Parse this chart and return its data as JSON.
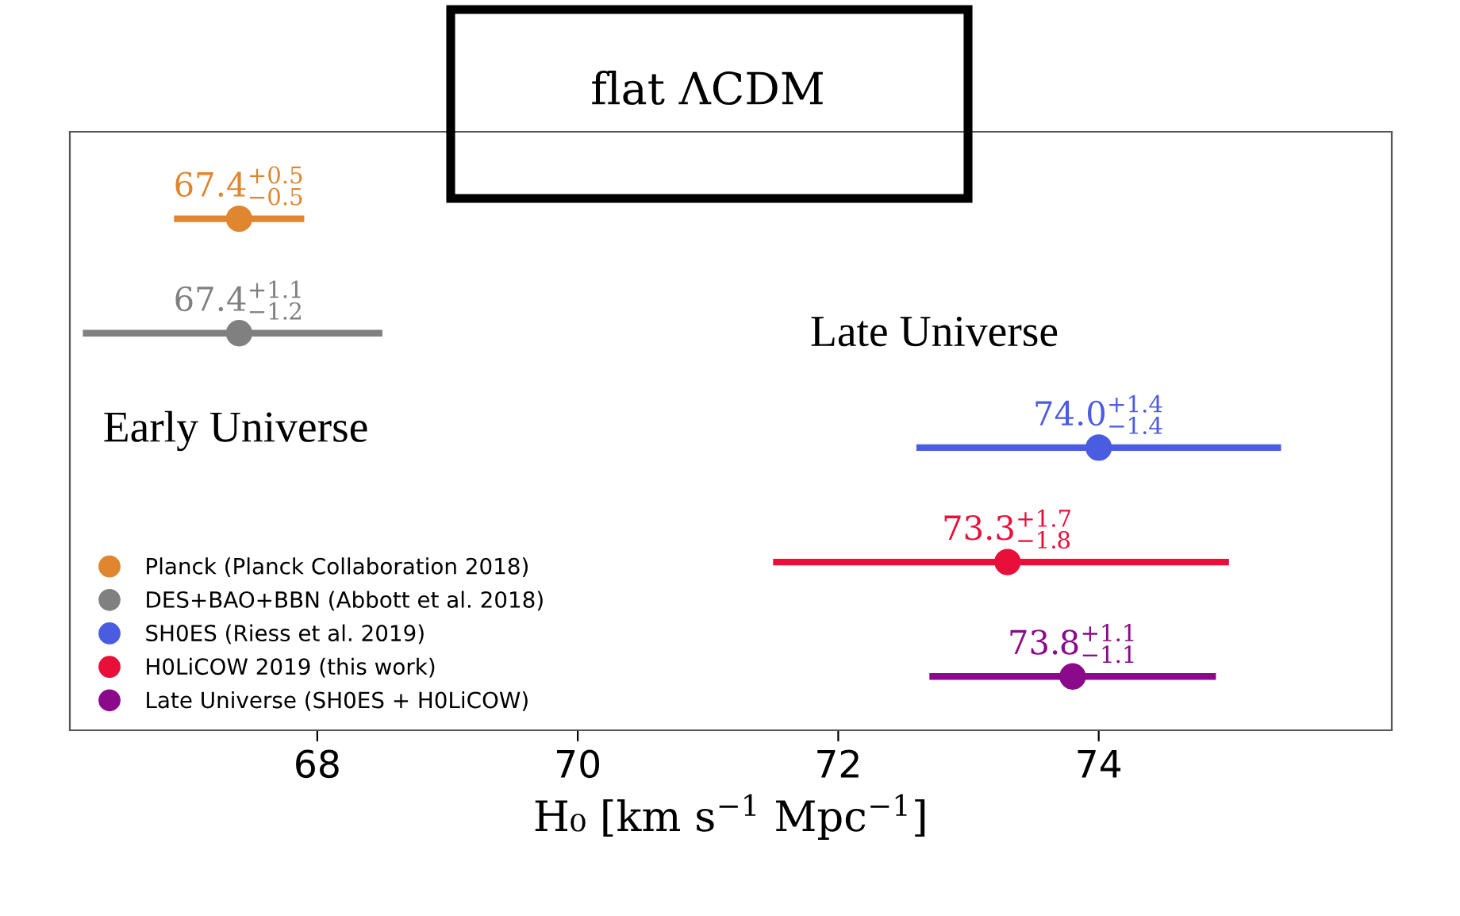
{
  "chart_data": {
    "type": "scatter",
    "orientation": "horizontal",
    "title": "flat ΛCDM",
    "xlabel": "H₀ [km s$^{−1}$ Mpc$^{−1}$]",
    "categories": [
      null,
      null,
      null,
      null,
      null
    ],
    "series": [
      {
        "name": "Planck (Planck Collaboration 2018)",
        "color": "#e0862e",
        "values": [
          67.4,
          null,
          null,
          null,
          null
        ],
        "errors": [
          [
            66.9,
            67.9
          ],
          null,
          null,
          null,
          null
        ],
        "value_labels": [
          "67.4$^{+0.5}$$_{−0.5}$",
          null,
          null,
          null,
          null
        ]
      },
      {
        "name": "DES+BAO+BBN (Abbott et al. 2018)",
        "color": "#808080",
        "values": [
          null,
          67.4,
          null,
          null,
          null
        ],
        "errors": [
          null,
          [
            66.2,
            68.5
          ],
          null,
          null,
          null
        ],
        "value_labels": [
          null,
          "67.4$^{+1.1}$$_{−1.2}$",
          null,
          null,
          null
        ]
      },
      {
        "name": "SH0ES (Riess et al. 2019)",
        "color": "#4a5ce0",
        "values": [
          null,
          null,
          74.0,
          null,
          null
        ],
        "errors": [
          null,
          null,
          [
            72.6,
            75.4
          ],
          null,
          null
        ],
        "value_labels": [
          null,
          null,
          "74.0$^{+1.4}$$_{−1.4}$",
          null,
          null
        ]
      },
      {
        "name": "H0LiCOW 2019 (this work)",
        "color": "#e8103a",
        "values": [
          null,
          null,
          null,
          73.3,
          null
        ],
        "errors": [
          null,
          null,
          null,
          [
            71.5,
            75.0
          ],
          null
        ],
        "value_labels": [
          null,
          null,
          null,
          "73.3$^{+1.7}$$_{−1.8}$",
          null
        ]
      },
      {
        "name": "Late Universe (SH0ES + H0LiCOW)",
        "color": "#8b0a8b",
        "values": [
          null,
          null,
          null,
          null,
          73.8
        ],
        "errors": [
          null,
          null,
          null,
          null,
          [
            72.7,
            74.9
          ]
        ],
        "value_labels": [
          null,
          null,
          null,
          null,
          "73.8$^{+1.1}$$_{−1.1}$"
        ]
      }
    ],
    "annotations": [
      "Early Universe",
      "Late Universe"
    ],
    "xlim": [
      66.1,
      76.25
    ],
    "xticks": [
      68,
      70,
      72,
      74
    ],
    "tick_labels": "x",
    "marker": "circle",
    "legend": "bottom left",
    "grid": false
  }
}
